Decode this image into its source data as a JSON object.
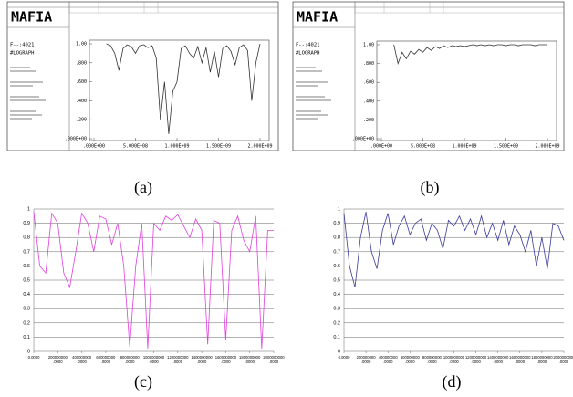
{
  "chart_data": [
    {
      "type": "line",
      "caption": "(a)",
      "title": "MAFIA",
      "annotations": [
        "F--:4021",
        "#LOGRAPH"
      ],
      "xlim": [
        0,
        2000000000
      ],
      "ylim": [
        0,
        1
      ],
      "xticks": [
        {
          "value": 0,
          "label": ".000E+00"
        },
        {
          "value": 500000000,
          "label": "5.000E+08"
        },
        {
          "value": 1000000000,
          "label": "1.000E+09"
        },
        {
          "value": 1500000000,
          "label": "1.500E+09"
        },
        {
          "value": 2000000000,
          "label": "2.000E+09"
        }
      ],
      "yticks": [
        {
          "value": 1,
          "label": "1.00"
        },
        {
          "value": 0.8,
          "label": ".800"
        },
        {
          "value": 0.6,
          "label": ".600"
        },
        {
          "value": 0.4,
          "label": ".400"
        },
        {
          "value": 0.2,
          "label": ".200"
        },
        {
          "value": 0,
          "label": ".000E+00"
        }
      ],
      "grid": false,
      "series": [
        {
          "color": "#333333",
          "x": [
            150000000,
            200000000,
            250000000,
            300000000,
            350000000,
            400000000,
            450000000,
            500000000,
            550000000,
            600000000,
            650000000,
            700000000,
            750000000,
            800000000,
            850000000,
            900000000,
            950000000,
            1000000000,
            1050000000,
            1100000000,
            1150000000,
            1200000000,
            1250000000,
            1300000000,
            1350000000,
            1400000000,
            1450000000,
            1500000000,
            1550000000,
            1600000000,
            1650000000,
            1700000000,
            1750000000,
            1800000000,
            1850000000,
            1900000000,
            1950000000,
            2000000000
          ],
          "values": [
            1.0,
            0.98,
            0.9,
            0.72,
            0.95,
            0.99,
            0.97,
            0.9,
            0.98,
            0.99,
            0.96,
            0.98,
            0.85,
            0.2,
            0.6,
            0.05,
            0.5,
            0.6,
            0.95,
            0.98,
            0.9,
            0.85,
            0.97,
            0.8,
            0.96,
            0.7,
            0.92,
            0.65,
            0.95,
            0.98,
            0.92,
            0.78,
            0.96,
            0.99,
            0.93,
            0.4,
            0.8,
            1.0
          ]
        }
      ]
    },
    {
      "type": "line",
      "caption": "(b)",
      "title": "MAFIA",
      "annotations": [
        "F--:4021",
        "#LOGRAPH"
      ],
      "xlim": [
        0,
        2000000000
      ],
      "ylim": [
        0,
        1
      ],
      "xticks": [
        {
          "value": 0,
          "label": ".000E+00"
        },
        {
          "value": 500000000,
          "label": "5.000E+08"
        },
        {
          "value": 1000000000,
          "label": "1.000E+09"
        },
        {
          "value": 1500000000,
          "label": "1.500E+09"
        },
        {
          "value": 2000000000,
          "label": "2.000E+09"
        }
      ],
      "yticks": [
        {
          "value": 1,
          "label": "1.00"
        },
        {
          "value": 0.8,
          "label": ".800"
        },
        {
          "value": 0.6,
          "label": ".600"
        },
        {
          "value": 0.4,
          "label": ".400"
        },
        {
          "value": 0.2,
          "label": ".200"
        },
        {
          "value": 0,
          "label": ".000E+00"
        }
      ],
      "grid": false,
      "series": [
        {
          "color": "#333333",
          "x": [
            150000000,
            200000000,
            250000000,
            300000000,
            350000000,
            400000000,
            450000000,
            500000000,
            550000000,
            600000000,
            650000000,
            700000000,
            750000000,
            800000000,
            850000000,
            900000000,
            950000000,
            1000000000,
            1050000000,
            1100000000,
            1150000000,
            1200000000,
            1250000000,
            1300000000,
            1350000000,
            1400000000,
            1450000000,
            1500000000,
            1550000000,
            1600000000,
            1650000000,
            1700000000,
            1750000000,
            1800000000,
            1850000000,
            1900000000,
            1950000000,
            2000000000
          ],
          "values": [
            1.0,
            0.8,
            0.92,
            0.85,
            0.93,
            0.9,
            0.95,
            0.92,
            0.97,
            0.94,
            0.98,
            0.96,
            0.99,
            0.97,
            0.99,
            0.98,
            0.99,
            0.98,
            0.99,
            1.0,
            0.99,
            1.0,
            0.99,
            1.0,
            0.99,
            1.0,
            1.0,
            0.99,
            1.0,
            1.0,
            0.99,
            1.0,
            1.0,
            1.0,
            0.99,
            1.0,
            1.0,
            1.0
          ]
        }
      ]
    },
    {
      "type": "line",
      "caption": "(c)",
      "xlim": [
        0,
        2000000000
      ],
      "ylim": [
        0,
        1
      ],
      "xticks": [
        {
          "value": 0,
          "label": "0.0000"
        },
        {
          "value": 200000000,
          "label": "200000000.0000"
        },
        {
          "value": 400000000,
          "label": "400000000.0000"
        },
        {
          "value": 600000000,
          "label": "600000000.0000"
        },
        {
          "value": 800000000,
          "label": "800000000.0000"
        },
        {
          "value": 1000000000,
          "label": "1000000000.0000"
        },
        {
          "value": 1200000000,
          "label": "1200000000.0000"
        },
        {
          "value": 1400000000,
          "label": "1400000000.0000"
        },
        {
          "value": 1600000000,
          "label": "1600000000.0000"
        },
        {
          "value": 1800000000,
          "label": "1800000000.0000"
        },
        {
          "value": 2000000000,
          "label": "2000000000.0000"
        }
      ],
      "yticks": [
        0,
        0.1,
        0.2,
        0.3,
        0.4,
        0.5,
        0.6,
        0.7,
        0.8,
        0.9,
        1
      ],
      "grid": true,
      "series": [
        {
          "color": "#e040e0",
          "x": [
            0,
            50000000,
            100000000,
            150000000,
            200000000,
            250000000,
            300000000,
            350000000,
            400000000,
            450000000,
            500000000,
            550000000,
            600000000,
            650000000,
            700000000,
            750000000,
            800000000,
            850000000,
            900000000,
            950000000,
            1000000000,
            1050000000,
            1100000000,
            1150000000,
            1200000000,
            1250000000,
            1300000000,
            1350000000,
            1400000000,
            1450000000,
            1500000000,
            1550000000,
            1600000000,
            1650000000,
            1700000000,
            1750000000,
            1800000000,
            1850000000,
            1900000000,
            1950000000,
            2000000000
          ],
          "values": [
            0.98,
            0.6,
            0.55,
            0.97,
            0.9,
            0.55,
            0.45,
            0.7,
            0.97,
            0.9,
            0.7,
            0.95,
            0.93,
            0.75,
            0.9,
            0.6,
            0.03,
            0.6,
            0.9,
            0.02,
            0.9,
            0.85,
            0.95,
            0.92,
            0.96,
            0.88,
            0.8,
            0.93,
            0.85,
            0.05,
            0.92,
            0.9,
            0.08,
            0.85,
            0.95,
            0.78,
            0.7,
            0.95,
            0.02,
            0.85,
            0.85
          ]
        }
      ]
    },
    {
      "type": "line",
      "caption": "(d)",
      "xlim": [
        0,
        2000000000
      ],
      "ylim": [
        0,
        1
      ],
      "xticks": [
        {
          "value": 0,
          "label": "0.0000"
        },
        {
          "value": 200000000,
          "label": "200000000.0000"
        },
        {
          "value": 400000000,
          "label": "400000000.0000"
        },
        {
          "value": 600000000,
          "label": "600000000.0000"
        },
        {
          "value": 800000000,
          "label": "800000000.0000"
        },
        {
          "value": 1000000000,
          "label": "1000000000.0000"
        },
        {
          "value": 1200000000,
          "label": "1200000000.0000"
        },
        {
          "value": 1400000000,
          "label": "1400000000.0000"
        },
        {
          "value": 1600000000,
          "label": "1600000000.0000"
        },
        {
          "value": 1800000000,
          "label": "1800000000.0000"
        },
        {
          "value": 2000000000,
          "label": "2000000000.0000"
        }
      ],
      "yticks": [
        0,
        0.1,
        0.2,
        0.3,
        0.4,
        0.5,
        0.6,
        0.7,
        0.8,
        0.9,
        1
      ],
      "grid": true,
      "series": [
        {
          "color": "#3a3a9a",
          "x": [
            0,
            50000000,
            100000000,
            150000000,
            200000000,
            250000000,
            300000000,
            350000000,
            400000000,
            450000000,
            500000000,
            550000000,
            600000000,
            650000000,
            700000000,
            750000000,
            800000000,
            850000000,
            900000000,
            950000000,
            1000000000,
            1050000000,
            1100000000,
            1150000000,
            1200000000,
            1250000000,
            1300000000,
            1350000000,
            1400000000,
            1450000000,
            1500000000,
            1550000000,
            1600000000,
            1650000000,
            1700000000,
            1750000000,
            1800000000,
            1850000000,
            1900000000,
            1950000000,
            2000000000
          ],
          "values": [
            0.97,
            0.6,
            0.45,
            0.8,
            0.98,
            0.7,
            0.58,
            0.85,
            0.97,
            0.75,
            0.88,
            0.95,
            0.82,
            0.9,
            0.93,
            0.78,
            0.9,
            0.85,
            0.72,
            0.92,
            0.88,
            0.95,
            0.85,
            0.93,
            0.82,
            0.95,
            0.8,
            0.9,
            0.78,
            0.92,
            0.75,
            0.88,
            0.82,
            0.7,
            0.85,
            0.6,
            0.8,
            0.58,
            0.9,
            0.88,
            0.78
          ]
        }
      ]
    }
  ]
}
